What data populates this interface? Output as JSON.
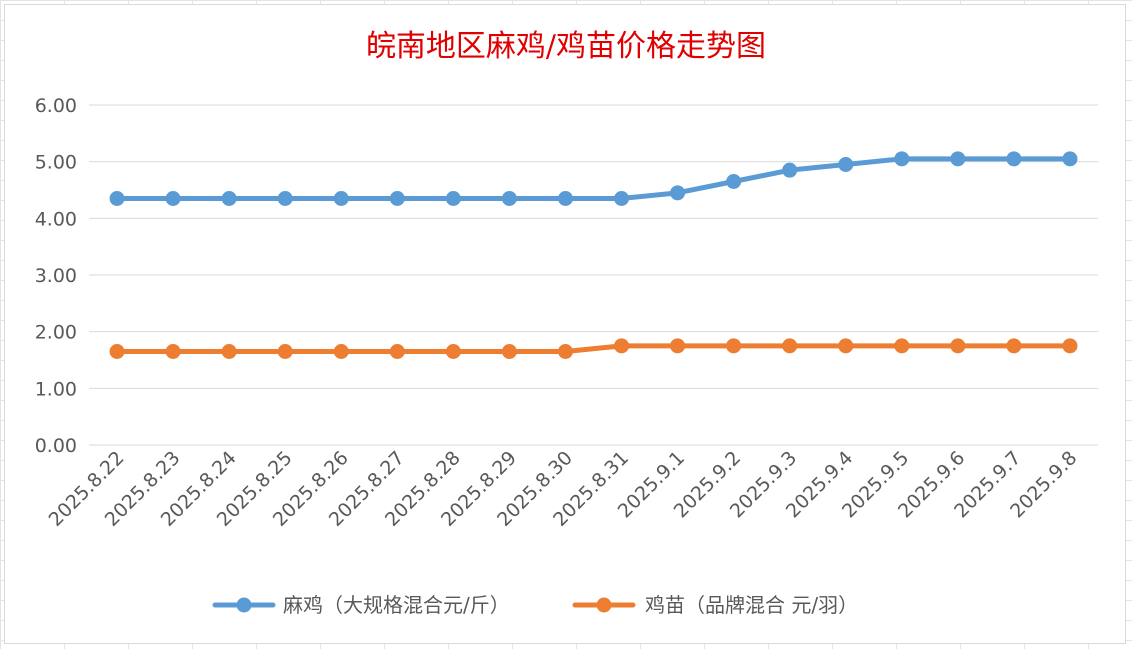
{
  "chart_data": {
    "type": "line",
    "title": "皖南地区麻鸡/鸡苗价格走势图",
    "xlabel": "",
    "ylabel": "",
    "ylim": [
      0,
      6
    ],
    "yticks": [
      "0.00",
      "1.00",
      "2.00",
      "3.00",
      "4.00",
      "5.00",
      "6.00"
    ],
    "grid": true,
    "legend_position": "bottom",
    "categories": [
      "2025.8.22",
      "2025.8.23",
      "2025.8.24",
      "2025.8.25",
      "2025.8.26",
      "2025.8.27",
      "2025.8.28",
      "2025.8.29",
      "2025.8.30",
      "2025.8.31",
      "2025.9.1",
      "2025.9.2",
      "2025.9.3",
      "2025.9.4",
      "2025.9.5",
      "2025.9.6",
      "2025.9.7",
      "2025.9.8"
    ],
    "series": [
      {
        "name": "麻鸡（大规格混合元/斤）",
        "color": "#5b9bd5",
        "values": [
          4.35,
          4.35,
          4.35,
          4.35,
          4.35,
          4.35,
          4.35,
          4.35,
          4.35,
          4.35,
          4.45,
          4.65,
          4.85,
          4.95,
          5.05,
          5.05,
          5.05,
          5.05
        ]
      },
      {
        "name": "鸡苗（品牌混合 元/羽）",
        "color": "#ed7d31",
        "values": [
          1.65,
          1.65,
          1.65,
          1.65,
          1.65,
          1.65,
          1.65,
          1.65,
          1.65,
          1.75,
          1.75,
          1.75,
          1.75,
          1.75,
          1.75,
          1.75,
          1.75,
          1.75
        ]
      }
    ]
  }
}
